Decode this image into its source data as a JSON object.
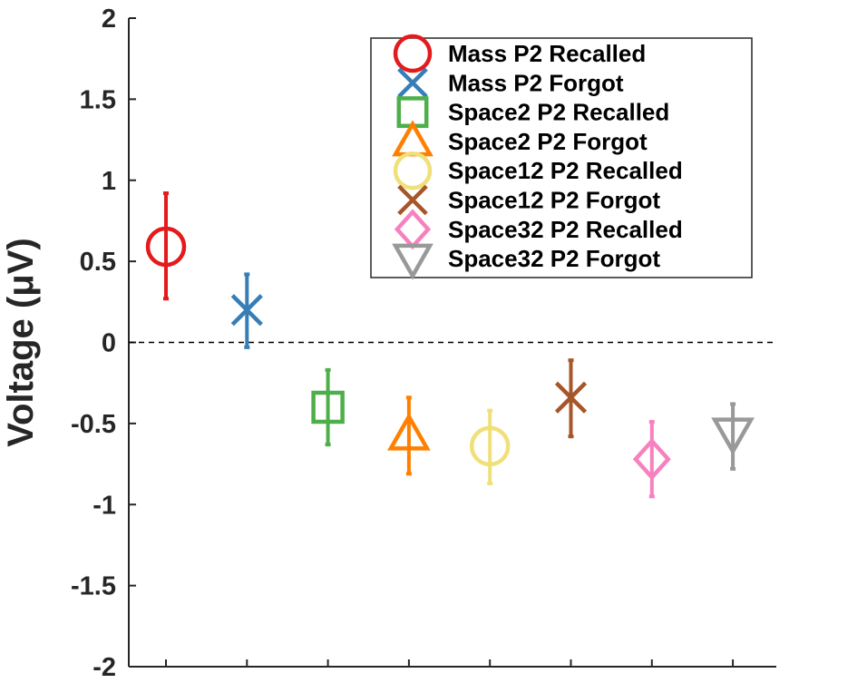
{
  "chart_data": {
    "type": "scatter",
    "title": "",
    "xlabel": "",
    "ylabel": "Voltage (μV)",
    "ylim": [
      -2,
      2
    ],
    "yticks": [
      2,
      1.5,
      1,
      0.5,
      0,
      -0.5,
      -1,
      -1.5,
      -2
    ],
    "ytick_labels": [
      "2",
      "1.5",
      "1",
      "0.5",
      "0",
      "-0.5",
      "-1",
      "-1.5",
      "-2"
    ],
    "reference_line": 0,
    "grid": false,
    "legend_position": "top-right",
    "series": [
      {
        "name": "Mass P2 Recalled",
        "x": 1,
        "value": 0.59,
        "err_low": 0.27,
        "err_high": 0.92,
        "marker": "circle",
        "color": "#e41a1c"
      },
      {
        "name": "Mass P2 Forgot",
        "x": 2,
        "value": 0.2,
        "err_low": -0.03,
        "err_high": 0.42,
        "marker": "x",
        "color": "#377eb8"
      },
      {
        "name": "Space2 P2 Recalled",
        "x": 3,
        "value": -0.4,
        "err_low": -0.63,
        "err_high": -0.17,
        "marker": "square",
        "color": "#4daf4a"
      },
      {
        "name": "Space2 P2 Forgot",
        "x": 4,
        "value": -0.57,
        "err_low": -0.81,
        "err_high": -0.34,
        "marker": "triangle-up",
        "color": "#ff7f00"
      },
      {
        "name": "Space12 P2 Recalled",
        "x": 5,
        "value": -0.64,
        "err_low": -0.87,
        "err_high": -0.42,
        "marker": "circle",
        "color": "#f0e07a"
      },
      {
        "name": "Space12 P2 Forgot",
        "x": 6,
        "value": -0.34,
        "err_low": -0.58,
        "err_high": -0.11,
        "marker": "x",
        "color": "#a65628"
      },
      {
        "name": "Space32 P2 Recalled",
        "x": 7,
        "value": -0.72,
        "err_low": -0.95,
        "err_high": -0.49,
        "marker": "diamond",
        "color": "#f781bf"
      },
      {
        "name": "Space32 P2 Forgot",
        "x": 8,
        "value": -0.56,
        "err_low": -0.78,
        "err_high": -0.38,
        "marker": "triangle-down",
        "color": "#999999"
      }
    ]
  }
}
